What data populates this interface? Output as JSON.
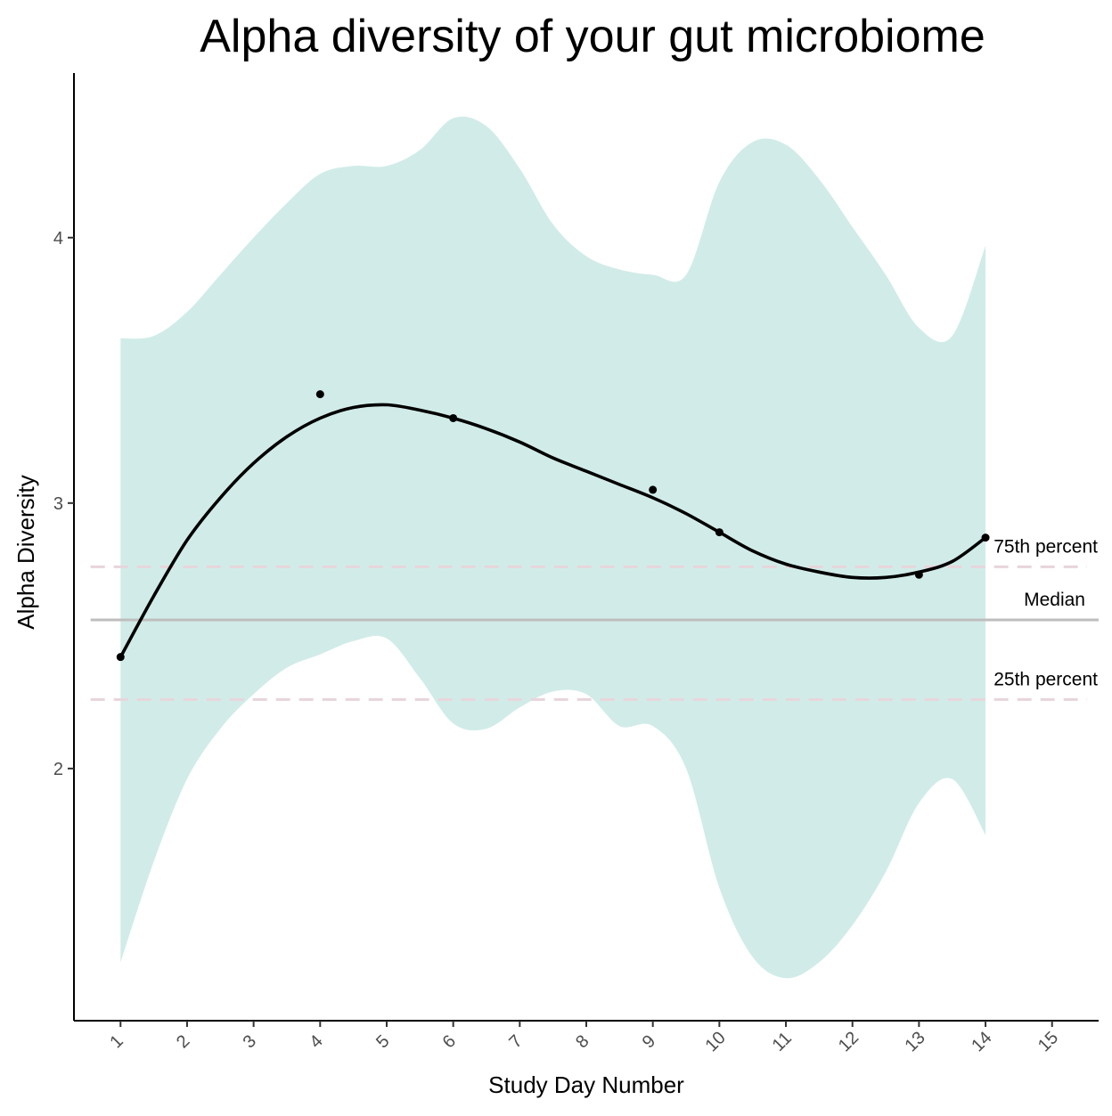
{
  "chart_data": {
    "type": "line",
    "title": "Alpha diversity of your gut microbiome",
    "xlabel": "Study Day Number",
    "ylabel": "Alpha Diversity",
    "x_ticks": [
      1,
      2,
      3,
      4,
      5,
      6,
      7,
      8,
      9,
      10,
      11,
      12,
      13,
      14,
      15
    ],
    "y_ticks": [
      2,
      3,
      4
    ],
    "xlim": [
      0.3,
      15.7
    ],
    "ylim": [
      1.05,
      4.62
    ],
    "grid": false,
    "points": [
      {
        "x": 1,
        "y": 2.42
      },
      {
        "x": 4,
        "y": 3.41
      },
      {
        "x": 6,
        "y": 3.32
      },
      {
        "x": 9,
        "y": 3.05
      },
      {
        "x": 10,
        "y": 2.89
      },
      {
        "x": 13,
        "y": 2.73
      },
      {
        "x": 14,
        "y": 2.87
      }
    ],
    "smooth_line": {
      "x": [
        1,
        1.5,
        2,
        2.5,
        3,
        3.5,
        4,
        4.5,
        5,
        5.5,
        6,
        6.5,
        7,
        7.5,
        8,
        8.5,
        9,
        9.5,
        10,
        10.5,
        11,
        11.5,
        12,
        12.5,
        13,
        13.5,
        14
      ],
      "y": [
        2.42,
        2.65,
        2.86,
        3.02,
        3.15,
        3.25,
        3.32,
        3.36,
        3.37,
        3.35,
        3.32,
        3.28,
        3.23,
        3.17,
        3.12,
        3.07,
        3.02,
        2.96,
        2.89,
        2.82,
        2.77,
        2.74,
        2.72,
        2.72,
        2.74,
        2.78,
        2.87
      ]
    },
    "confidence_band": {
      "x": [
        1,
        1.5,
        2,
        2.5,
        3,
        3.5,
        4,
        4.5,
        5,
        5.5,
        6,
        6.5,
        7,
        7.5,
        8,
        8.5,
        9,
        9.5,
        10,
        10.5,
        11,
        11.5,
        12,
        12.5,
        13,
        13.5,
        14
      ],
      "upper": [
        3.62,
        3.63,
        3.72,
        3.86,
        4.0,
        4.13,
        4.24,
        4.27,
        4.27,
        4.33,
        4.45,
        4.42,
        4.26,
        4.05,
        3.93,
        3.88,
        3.86,
        3.86,
        4.21,
        4.36,
        4.35,
        4.22,
        4.04,
        3.86,
        3.66,
        3.63,
        3.97
      ],
      "lower": [
        1.27,
        1.65,
        1.96,
        2.15,
        2.28,
        2.38,
        2.43,
        2.48,
        2.49,
        2.34,
        2.17,
        2.15,
        2.23,
        2.29,
        2.28,
        2.16,
        2.16,
        2.0,
        1.55,
        1.29,
        1.21,
        1.27,
        1.41,
        1.61,
        1.87,
        1.96,
        1.75
      ]
    },
    "reference_lines": [
      {
        "name": "75th percent",
        "y": 2.76,
        "style": "dashed",
        "color": "#e8d5db"
      },
      {
        "name": "Median",
        "y": 2.56,
        "style": "solid",
        "color": "#bebebe"
      },
      {
        "name": "25th percent",
        "y": 2.26,
        "style": "dashed",
        "color": "#e8d5db"
      }
    ],
    "colors": {
      "band": "#d1ece8",
      "line": "#000000",
      "points": "#000000",
      "axis": "#000000"
    }
  }
}
